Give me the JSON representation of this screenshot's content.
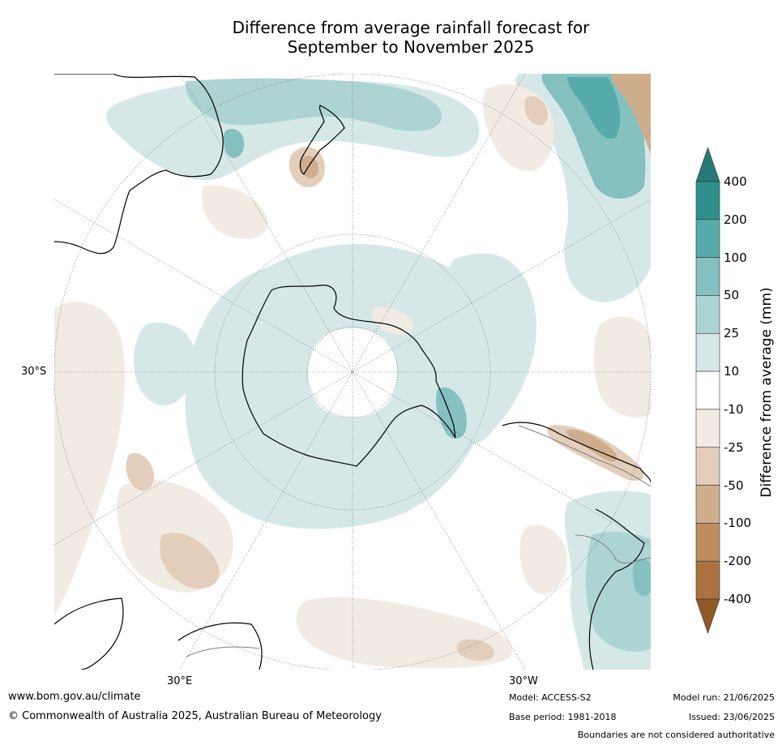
{
  "title_line1": "Difference from average rainfall forecast for",
  "title_line2": "September to November 2025",
  "map": {
    "projection": "south polar stereographic",
    "lat_label": "30°S",
    "lon_label_east": "30°E",
    "lon_label_west": "30°W",
    "colors": {
      "wet_25_50": "#d5e8e7",
      "wet_50_100": "#acd4d2",
      "wet_100_200": "#85c1c0",
      "wet_200_400": "#58abab",
      "dry_10_25": "#f1ebe4",
      "dry_25_50": "#e3cebc",
      "dry_50_100": "#cfae8d",
      "coast": "#000000",
      "borders": "#808080"
    }
  },
  "colorbar": {
    "label": "Difference from average (mm)",
    "ticks": [
      "400",
      "200",
      "100",
      "50",
      "25",
      "10",
      "-10",
      "-25",
      "-50",
      "-100",
      "-200",
      "-400"
    ],
    "colors": [
      "#2e8f8c",
      "#58abab",
      "#85c1c0",
      "#acd4d2",
      "#d5e8e7",
      "#ffffff",
      "#f1ebe4",
      "#e3cebc",
      "#cfae8d",
      "#bf8c60",
      "#ab7240"
    ],
    "extend_top_color": "#267977",
    "extend_bottom_color": "#8f5a25"
  },
  "footer": {
    "url": "www.bom.gov.au/climate",
    "copyright": "© Commonwealth of Australia 2025, Australian Bureau of Meteorology",
    "model": "Model: ACCESS-S2",
    "base_period": "Base period: 1981-2018",
    "model_run": "Model run: 21/06/2025",
    "issued": "Issued: 23/06/2025",
    "disclaimer": "Boundaries are not considered authoritative"
  }
}
